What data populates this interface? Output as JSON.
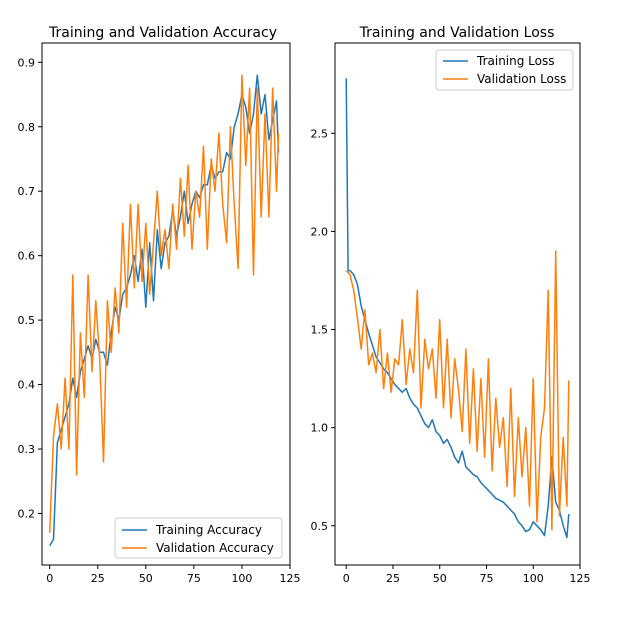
{
  "chart_data": [
    {
      "type": "line",
      "title": "Training and Validation Accuracy",
      "xlabel": "",
      "ylabel": "",
      "xlim": [
        -4,
        125
      ],
      "ylim": [
        0.12,
        0.93
      ],
      "xticks": [
        "0",
        "25",
        "50",
        "75",
        "100",
        "125"
      ],
      "yticks": [
        "0.2",
        "0.3",
        "0.4",
        "0.5",
        "0.6",
        "0.7",
        "0.8",
        "0.9"
      ],
      "legend_position": "lower-right",
      "series": [
        {
          "name": "Training Accuracy",
          "color": "#1f77b4",
          "x": [
            0,
            2,
            4,
            6,
            8,
            10,
            12,
            14,
            16,
            18,
            20,
            22,
            24,
            26,
            28,
            30,
            32,
            34,
            36,
            38,
            40,
            42,
            44,
            46,
            48,
            50,
            52,
            54,
            56,
            58,
            60,
            62,
            64,
            66,
            68,
            70,
            72,
            74,
            76,
            78,
            80,
            82,
            84,
            86,
            88,
            90,
            92,
            94,
            96,
            98,
            100,
            102,
            104,
            106,
            108,
            110,
            112,
            114,
            116,
            118,
            119
          ],
          "values": [
            0.15,
            0.16,
            0.31,
            0.33,
            0.35,
            0.37,
            0.41,
            0.38,
            0.42,
            0.44,
            0.46,
            0.44,
            0.47,
            0.45,
            0.45,
            0.43,
            0.48,
            0.52,
            0.5,
            0.54,
            0.55,
            0.57,
            0.6,
            0.56,
            0.61,
            0.52,
            0.62,
            0.53,
            0.64,
            0.58,
            0.62,
            0.63,
            0.67,
            0.63,
            0.66,
            0.7,
            0.65,
            0.68,
            0.7,
            0.69,
            0.71,
            0.71,
            0.74,
            0.72,
            0.73,
            0.73,
            0.76,
            0.75,
            0.8,
            0.82,
            0.85,
            0.83,
            0.79,
            0.82,
            0.88,
            0.82,
            0.85,
            0.78,
            0.81,
            0.84,
            0.76
          ]
        },
        {
          "name": "Validation Accuracy",
          "color": "#ff7f0e",
          "x": [
            0,
            2,
            4,
            6,
            8,
            10,
            12,
            14,
            16,
            18,
            20,
            22,
            24,
            26,
            28,
            30,
            32,
            34,
            36,
            38,
            40,
            42,
            44,
            46,
            48,
            50,
            52,
            54,
            56,
            58,
            60,
            62,
            64,
            66,
            68,
            70,
            72,
            74,
            76,
            78,
            80,
            82,
            84,
            86,
            88,
            90,
            92,
            94,
            96,
            98,
            100,
            102,
            104,
            106,
            108,
            110,
            112,
            114,
            116,
            118,
            119
          ],
          "values": [
            0.17,
            0.32,
            0.37,
            0.3,
            0.41,
            0.3,
            0.57,
            0.26,
            0.48,
            0.38,
            0.57,
            0.42,
            0.53,
            0.44,
            0.28,
            0.53,
            0.45,
            0.55,
            0.48,
            0.65,
            0.52,
            0.68,
            0.55,
            0.68,
            0.56,
            0.65,
            0.54,
            0.62,
            0.7,
            0.6,
            0.64,
            0.58,
            0.68,
            0.61,
            0.72,
            0.63,
            0.74,
            0.61,
            0.7,
            0.66,
            0.77,
            0.61,
            0.75,
            0.7,
            0.79,
            0.68,
            0.62,
            0.8,
            0.68,
            0.58,
            0.88,
            0.74,
            0.86,
            0.57,
            0.86,
            0.66,
            0.82,
            0.66,
            0.86,
            0.7,
            0.79
          ]
        }
      ]
    },
    {
      "type": "line",
      "title": "Training and Validation Loss",
      "xlabel": "",
      "ylabel": "",
      "xlim": [
        -6,
        125
      ],
      "ylim": [
        0.3,
        2.96
      ],
      "xticks": [
        "0",
        "25",
        "50",
        "75",
        "100",
        "125"
      ],
      "yticks": [
        "0.5",
        "1.0",
        "1.5",
        "2.0",
        "2.5"
      ],
      "legend_position": "upper-right",
      "series": [
        {
          "name": "Training Loss",
          "color": "#1f77b4",
          "x": [
            0,
            1,
            2,
            4,
            6,
            8,
            10,
            12,
            14,
            16,
            18,
            20,
            22,
            24,
            26,
            28,
            30,
            32,
            34,
            36,
            38,
            40,
            42,
            44,
            46,
            48,
            50,
            52,
            54,
            56,
            58,
            60,
            62,
            64,
            66,
            68,
            70,
            72,
            74,
            76,
            78,
            80,
            82,
            84,
            86,
            88,
            90,
            92,
            94,
            96,
            98,
            100,
            102,
            104,
            106,
            108,
            110,
            112,
            114,
            116,
            118,
            119
          ],
          "values": [
            2.78,
            1.8,
            1.8,
            1.78,
            1.73,
            1.62,
            1.55,
            1.48,
            1.42,
            1.36,
            1.33,
            1.3,
            1.28,
            1.25,
            1.22,
            1.2,
            1.18,
            1.2,
            1.15,
            1.12,
            1.1,
            1.06,
            1.02,
            1.0,
            1.04,
            0.98,
            0.96,
            0.92,
            0.94,
            0.9,
            0.85,
            0.82,
            0.88,
            0.8,
            0.78,
            0.76,
            0.75,
            0.72,
            0.7,
            0.68,
            0.66,
            0.64,
            0.63,
            0.62,
            0.6,
            0.58,
            0.56,
            0.52,
            0.5,
            0.47,
            0.48,
            0.52,
            0.5,
            0.48,
            0.45,
            0.6,
            0.85,
            0.62,
            0.58,
            0.5,
            0.44,
            0.56
          ]
        },
        {
          "name": "Validation Loss",
          "color": "#ff7f0e",
          "x": [
            0,
            2,
            4,
            6,
            8,
            10,
            12,
            14,
            16,
            18,
            20,
            22,
            24,
            26,
            28,
            30,
            32,
            34,
            36,
            38,
            40,
            42,
            44,
            46,
            48,
            50,
            52,
            54,
            56,
            58,
            60,
            62,
            64,
            66,
            68,
            70,
            72,
            74,
            76,
            78,
            80,
            82,
            84,
            86,
            88,
            90,
            92,
            94,
            96,
            98,
            100,
            102,
            104,
            106,
            108,
            110,
            112,
            114,
            116,
            118,
            119
          ],
          "values": [
            1.8,
            1.78,
            1.7,
            1.56,
            1.4,
            1.6,
            1.32,
            1.38,
            1.28,
            1.5,
            1.2,
            1.38,
            1.18,
            1.35,
            1.32,
            1.55,
            1.22,
            1.4,
            1.28,
            1.7,
            1.1,
            1.45,
            1.3,
            1.4,
            1.15,
            1.55,
            1.1,
            1.45,
            1.05,
            1.35,
            1.2,
            0.98,
            1.4,
            0.92,
            1.3,
            0.88,
            1.25,
            0.85,
            1.35,
            0.78,
            1.15,
            0.9,
            1.05,
            0.7,
            1.2,
            0.65,
            1.05,
            0.75,
            1.0,
            0.6,
            1.25,
            0.52,
            0.95,
            1.1,
            1.7,
            0.48,
            1.9,
            0.55,
            0.95,
            0.6,
            1.24
          ]
        }
      ]
    }
  ]
}
